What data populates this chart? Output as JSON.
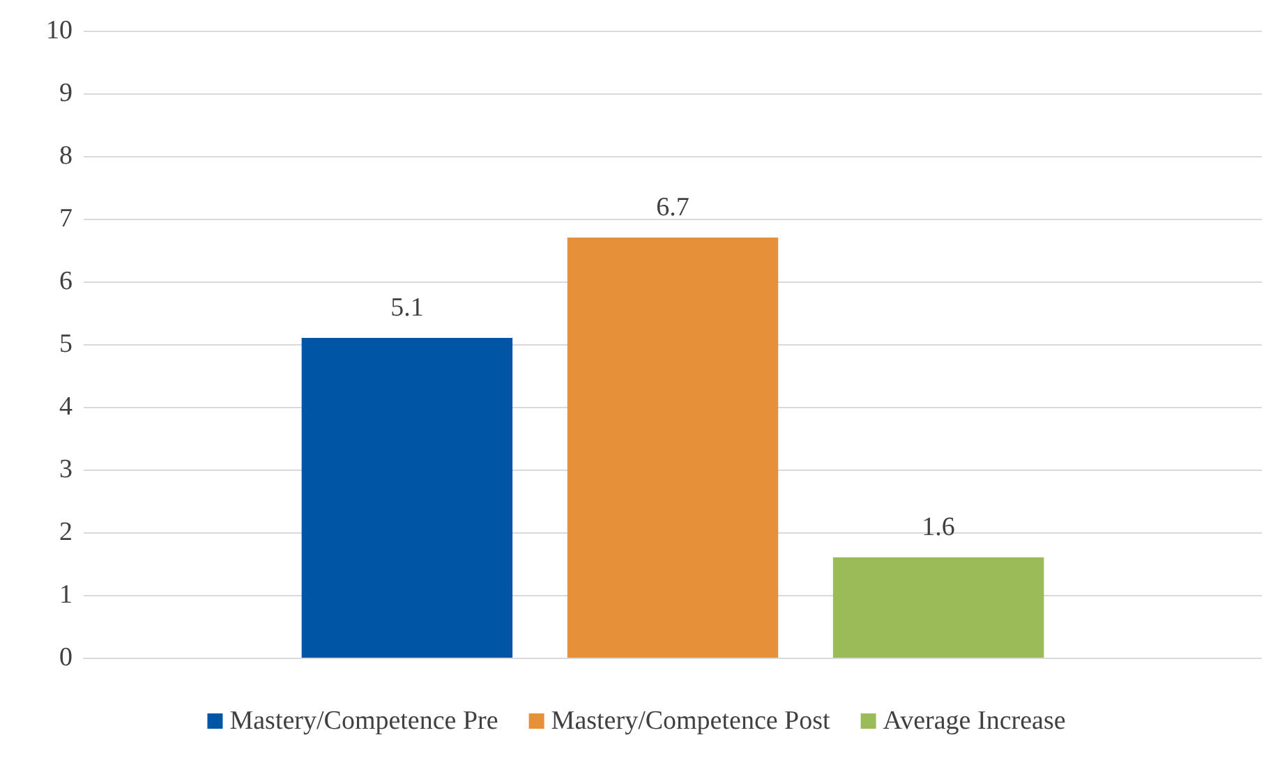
{
  "chart_data": {
    "type": "bar",
    "categories": [
      null
    ],
    "series": [
      {
        "name": "Mastery/Competence Pre",
        "color": "#0055a5",
        "values": [
          5.1
        ]
      },
      {
        "name": "Mastery/Competence Post",
        "color": "#e6913a",
        "values": [
          6.7
        ]
      },
      {
        "name": "Average Increase",
        "color": "#9bbb59",
        "values": [
          1.6
        ]
      }
    ],
    "ylim": [
      0,
      10
    ],
    "yticks": [
      0,
      1,
      2,
      3,
      4,
      5,
      6,
      7,
      8,
      9,
      10
    ],
    "grid": "y",
    "legend": "bottom",
    "data_labels": true
  }
}
